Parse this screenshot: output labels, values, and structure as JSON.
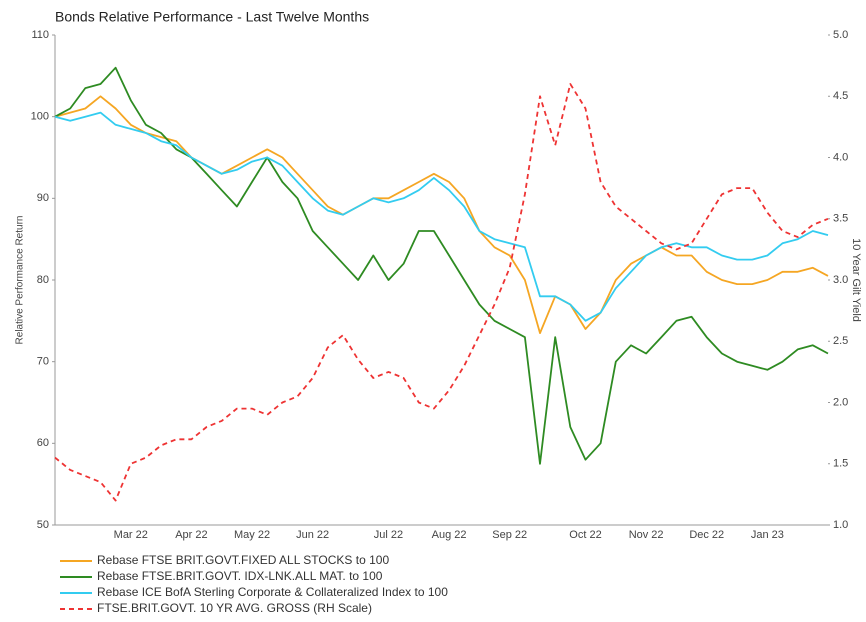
{
  "chart_data": {
    "type": "line",
    "title": "Bonds Relative Performance - Last Twelve Months",
    "y_label": "Relative Performance Return",
    "y2_label": "10 Year Gilt Yield",
    "categories": [
      null,
      null,
      null,
      null,
      null,
      "Mar 22",
      null,
      null,
      null,
      "Apr 22",
      null,
      null,
      null,
      "May 22",
      null,
      null,
      null,
      "Jun 22",
      null,
      null,
      null,
      null,
      "Jul 22",
      null,
      null,
      null,
      "Aug 22",
      null,
      null,
      null,
      "Sep 22",
      null,
      null,
      null,
      null,
      "Oct 22",
      null,
      null,
      null,
      "Nov 22",
      null,
      null,
      null,
      "Dec 22",
      null,
      null,
      null,
      "Jan 23",
      null,
      null,
      null,
      null
    ],
    "ylim": [
      50,
      110
    ],
    "yticks": [
      50,
      60,
      70,
      80,
      90,
      100,
      110
    ],
    "y2lim": [
      1.0,
      5.0
    ],
    "y2ticks": [
      {
        "value": 1.0,
        "label": "1.0"
      },
      1.5,
      {
        "value": 2.0,
        "label": "2.0"
      },
      2.5,
      {
        "value": 3.0,
        "label": "3.0"
      },
      3.5,
      {
        "value": 4.0,
        "label": "4.0"
      },
      4.5,
      {
        "value": 5.0,
        "label": "5.0"
      }
    ],
    "series": [
      {
        "name": "Rebase FTSE BRIT.GOVT.FIXED ALL STOCKS to 100",
        "color": "#f5a623",
        "values": [
          100,
          100.5,
          101,
          102.5,
          101,
          99,
          98,
          97.5,
          97,
          95,
          94,
          93,
          94,
          95,
          96,
          95,
          93,
          91,
          89,
          88,
          89,
          90,
          90,
          91,
          92,
          93,
          92,
          90,
          86,
          84,
          83,
          80,
          73.5,
          78,
          77,
          74,
          76,
          80,
          82,
          83,
          84,
          83,
          83,
          81,
          80,
          79.5,
          79.5,
          80,
          81,
          81,
          81.5,
          80.5
        ]
      },
      {
        "name": "Rebase FTSE.BRIT.GOVT. IDX-LNK.ALL MAT. to 100",
        "color": "#2e8b22",
        "values": [
          100,
          101,
          103.5,
          104,
          106,
          102,
          99,
          98,
          96,
          95,
          93,
          91,
          89,
          92,
          95,
          92,
          90,
          86,
          84,
          82,
          80,
          83,
          80,
          82,
          86,
          86,
          83,
          80,
          77,
          75,
          74,
          73,
          57.5,
          73,
          62,
          58,
          60,
          70,
          72,
          71,
          73,
          75,
          75.5,
          73,
          71,
          70,
          69.5,
          69,
          70,
          71.5,
          72,
          71
        ]
      },
      {
        "name": "Rebase ICE BofA Sterling Corporate & Collateralized Index to 100",
        "color": "#33ccf0",
        "values": [
          100,
          99.5,
          100,
          100.5,
          99,
          98.5,
          98,
          97,
          96.5,
          95,
          94,
          93,
          93.5,
          94.5,
          95,
          94,
          92,
          90,
          88.5,
          88,
          89,
          90,
          89.5,
          90,
          91,
          92.5,
          91,
          89,
          86,
          85,
          84.5,
          84,
          78,
          78,
          77,
          75,
          76,
          79,
          81,
          83,
          84,
          84.5,
          84,
          84,
          83,
          82.5,
          82.5,
          83,
          84.5,
          85,
          86,
          85.5
        ]
      },
      {
        "name": "FTSE.BRIT.GOVT. 10 YR AVG. GROSS (RH Scale)",
        "color": "#ee3333",
        "axis": "y2",
        "dashed": true,
        "values": [
          1.55,
          1.45,
          1.4,
          1.35,
          1.2,
          1.5,
          1.55,
          1.65,
          1.7,
          1.7,
          1.8,
          1.85,
          1.95,
          1.95,
          1.9,
          2.0,
          2.05,
          2.2,
          2.45,
          2.55,
          2.35,
          2.2,
          2.25,
          2.2,
          2.0,
          1.95,
          2.1,
          2.3,
          2.55,
          2.8,
          3.1,
          3.7,
          4.5,
          4.1,
          4.6,
          4.4,
          3.8,
          3.6,
          3.5,
          3.4,
          3.3,
          3.25,
          3.3,
          3.5,
          3.7,
          3.75,
          3.75,
          3.55,
          3.4,
          3.35,
          3.45,
          3.5
        ]
      }
    ]
  }
}
